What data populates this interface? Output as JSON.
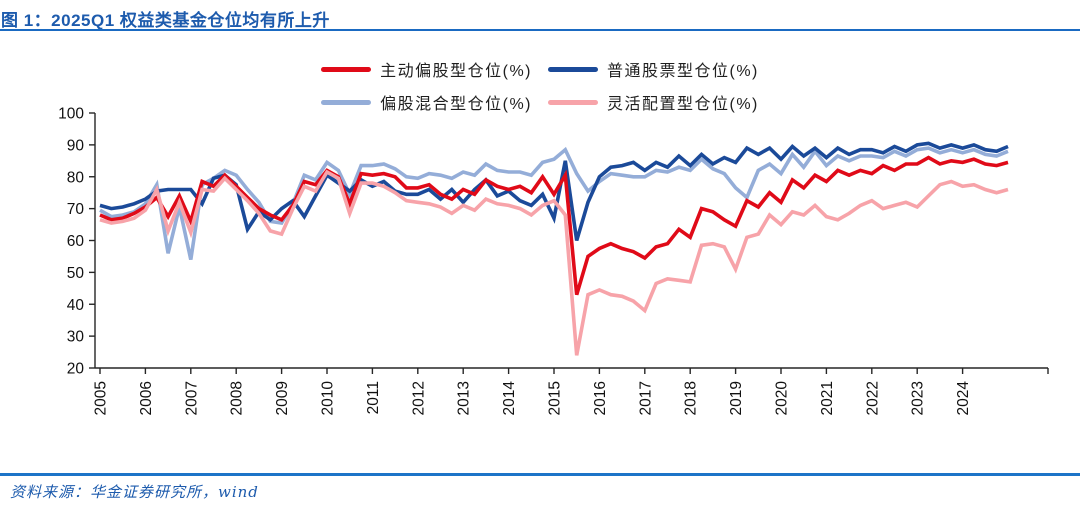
{
  "header": {
    "title": "图 1：2025Q1 权益类基金仓位均有所上升"
  },
  "footer": {
    "source": "资料来源：华金证券研究所，wind"
  },
  "colors": {
    "title_text": "#1d5bad",
    "rule_blue": "#1a6ac2",
    "footer_rule_blue": "#1c74c8",
    "axis": "#262626",
    "tick_label": "#111111"
  },
  "chart_data": {
    "type": "line",
    "title": "2025Q1 权益类基金仓位均有所上升",
    "xlabel": "",
    "ylabel": "",
    "x_frequency": "quarterly",
    "x_start": "2005Q1",
    "x_end": "2025Q1",
    "x_tick_labels": [
      "2005",
      "2006",
      "2007",
      "2008",
      "2009",
      "2010",
      "2011",
      "2012",
      "2013",
      "2014",
      "2015",
      "2016",
      "2017",
      "2018",
      "2019",
      "2020",
      "2021",
      "2022",
      "2023",
      "2024"
    ],
    "y_ticks": [
      20,
      30,
      40,
      50,
      60,
      70,
      80,
      90,
      100
    ],
    "ylim": [
      20,
      100
    ],
    "grid": false,
    "legend_position": "top-center",
    "series": [
      {
        "name": "主动偏股型仓位(%)",
        "color": "#e00a18",
        "values": [
          68,
          66.5,
          67,
          68.5,
          70.5,
          73.5,
          67.5,
          74,
          66,
          78.5,
          77,
          80.5,
          77,
          73.5,
          70,
          68,
          66.5,
          71,
          78.5,
          77.5,
          82,
          80,
          71.5,
          81,
          80.5,
          81,
          80,
          76.5,
          76.5,
          77.5,
          74.5,
          73,
          76,
          74.5,
          79,
          77,
          76,
          77,
          75,
          80,
          74.5,
          80.5,
          43,
          55,
          57.5,
          59,
          57.5,
          56.5,
          54.5,
          58,
          59,
          63.5,
          61,
          70,
          69,
          66.5,
          64.5,
          72.5,
          70.5,
          75,
          72,
          79,
          76.5,
          80.5,
          78.5,
          82,
          80.5,
          82,
          81,
          83.5,
          82,
          84,
          84,
          86,
          84,
          85,
          84.5,
          85.5,
          84,
          83.5,
          84.5
        ]
      },
      {
        "name": "普通股票型仓位(%)",
        "color": "#1b4a99",
        "values": [
          71,
          70,
          70.5,
          71.5,
          73,
          75.5,
          76,
          76,
          76,
          71.5,
          79.5,
          80.5,
          77.5,
          63.5,
          69,
          66.5,
          70,
          72.5,
          67.5,
          74,
          80.5,
          78,
          75.5,
          79,
          77,
          78.5,
          75.5,
          74.5,
          74.5,
          76,
          73,
          76,
          72,
          76,
          79,
          74,
          75.5,
          72.5,
          71,
          74.5,
          67,
          85,
          60,
          72,
          80,
          83,
          83.5,
          84.5,
          82,
          84.5,
          83,
          86.5,
          83.5,
          87,
          84,
          86,
          84.5,
          89,
          87,
          89,
          85.5,
          89.5,
          86.5,
          89,
          86,
          89,
          87,
          88.5,
          88.5,
          87.5,
          89.5,
          88,
          90,
          90.5,
          89,
          90,
          89,
          90,
          88.5,
          88,
          89.5
        ]
      },
      {
        "name": "偏股混合型仓位(%)",
        "color": "#94add8",
        "values": [
          69.5,
          67.5,
          68,
          69,
          71.5,
          77.5,
          56,
          70.5,
          54,
          77.5,
          79.5,
          82,
          80.5,
          76,
          72,
          66,
          65.5,
          71.5,
          80.5,
          79,
          84.5,
          82,
          74.5,
          83.5,
          83.5,
          84,
          82.5,
          80,
          79.5,
          81,
          80.5,
          79.5,
          81.5,
          80.5,
          84,
          82,
          81.5,
          81.5,
          80.5,
          84.5,
          85.5,
          88.5,
          81,
          75.5,
          78.5,
          81,
          80.5,
          80,
          80,
          82,
          81.5,
          83,
          82,
          85.5,
          82.5,
          81,
          76.5,
          73.5,
          82,
          84,
          81,
          87,
          83,
          88,
          83.5,
          86.5,
          85,
          86.5,
          86.5,
          86,
          88,
          86.5,
          88.5,
          89,
          87.5,
          88.5,
          87.5,
          88.5,
          87,
          86.5,
          88
        ]
      },
      {
        "name": "灵活配置型仓位(%)",
        "color": "#f7a3a9",
        "values": [
          66.5,
          65.5,
          66,
          67,
          69.5,
          76,
          63,
          72,
          62.5,
          76,
          75.5,
          79.5,
          76,
          72.5,
          68.5,
          63,
          62,
          70,
          77,
          75.5,
          81.5,
          79.5,
          68.5,
          78,
          78,
          77,
          75,
          72.5,
          72,
          71.5,
          70.5,
          68.5,
          71,
          69.5,
          73,
          71.5,
          71,
          70,
          68,
          71,
          72.5,
          68,
          24,
          43,
          44.5,
          43,
          42.5,
          41,
          38,
          46.5,
          48,
          47.5,
          47,
          58.5,
          59,
          58,
          51,
          61,
          62,
          68,
          65,
          69,
          68,
          71,
          67.5,
          66.5,
          68.5,
          71,
          72.5,
          70,
          71,
          72,
          70.5,
          74,
          77.5,
          78.5,
          77,
          77.5,
          76,
          75,
          76
        ]
      }
    ]
  }
}
